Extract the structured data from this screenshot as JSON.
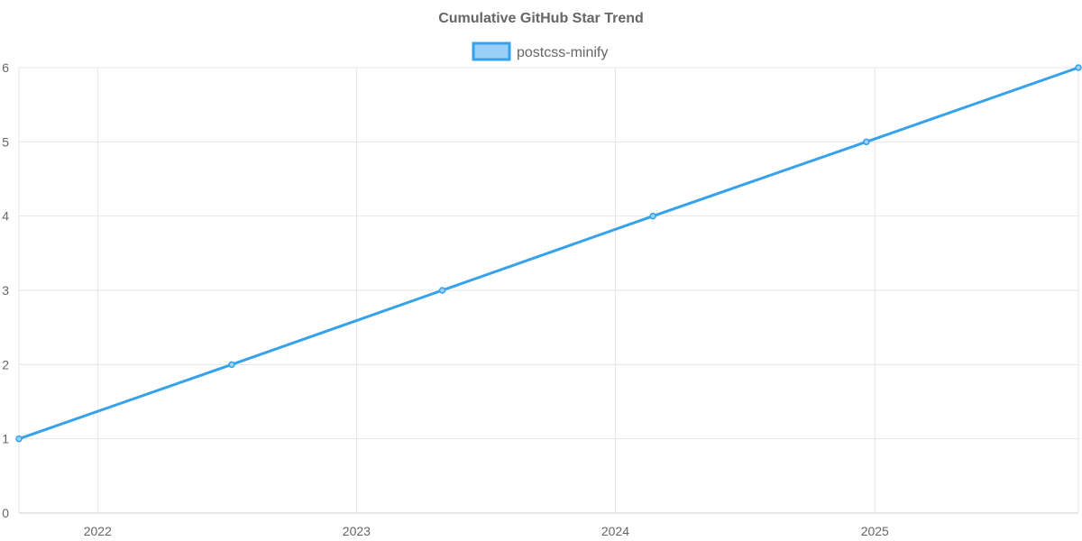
{
  "chart_data": {
    "type": "line",
    "title": "Cumulative GitHub Star Trend",
    "xlabel": "",
    "ylabel": "",
    "x_ticks": [
      "2022",
      "2023",
      "2024",
      "2025"
    ],
    "xlim": [
      "2021-09-12",
      "2025-10-15"
    ],
    "ylim": [
      0,
      6
    ],
    "y_ticks": [
      0,
      1,
      2,
      3,
      4,
      5,
      6
    ],
    "grid": true,
    "legend_position": "top",
    "series": [
      {
        "name": "postcss-minify",
        "color": "#36a2eb",
        "fill": "#9ad0f5",
        "points": [
          {
            "x": "2021-09-12",
            "y": 1
          },
          {
            "x": "2022-07-09",
            "y": 2
          },
          {
            "x": "2023-05-02",
            "y": 3
          },
          {
            "x": "2024-02-23",
            "y": 4
          },
          {
            "x": "2024-12-20",
            "y": 5
          },
          {
            "x": "2025-10-15",
            "y": 6
          }
        ]
      }
    ]
  }
}
